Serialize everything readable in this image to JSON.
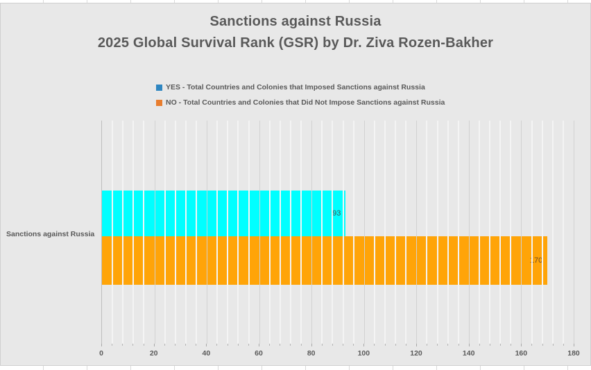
{
  "title": {
    "line1": "Sanctions against Russia",
    "line2": "2025 Global Survival Rank (GSR) by Dr. Ziva Rozen-Bakher"
  },
  "legend": [
    {
      "label": "YES - Total Countries and Colonies that Imposed Sanctions against Russia",
      "swatch_color": "#2e86c1"
    },
    {
      "label": "NO - Total Countries and Colonies that Did Not Impose Sanctions against Russia",
      "swatch_color": "#e87d2e"
    }
  ],
  "category_label": "Sanctions against Russia",
  "chart_data": {
    "type": "bar",
    "orientation": "horizontal",
    "title": "Sanctions against Russia — 2025 Global Survival Rank (GSR) by Dr. Ziva Rozen-Bakher",
    "categories": [
      "Sanctions against Russia"
    ],
    "series": [
      {
        "name": "YES - Total Countries and Colonies that Imposed Sanctions against Russia",
        "values": [
          93
        ],
        "bar_color": "#00ffff",
        "label_color": "#3d5454"
      },
      {
        "name": "NO - Total Countries and Colonies that Did Not Impose Sanctions against Russia",
        "values": [
          170
        ],
        "bar_color": "#ffa408",
        "label_color": "#6e4b23"
      }
    ],
    "data_labels": [
      "93",
      "170"
    ],
    "xlim": [
      0,
      180
    ],
    "x_major_tick": 20,
    "x_minor_tick": 4,
    "x_tick_labels": [
      "0",
      "20",
      "40",
      "60",
      "80",
      "100",
      "120",
      "140",
      "160",
      "180"
    ],
    "grid": true,
    "legend_position": "top"
  },
  "colors": {
    "chart_background": "#e8e8e8",
    "text": "#595959",
    "major_gridline": "#d1d1d1",
    "minor_gridline": "#f4f4f4",
    "axis_line": "#bdbdbd"
  }
}
